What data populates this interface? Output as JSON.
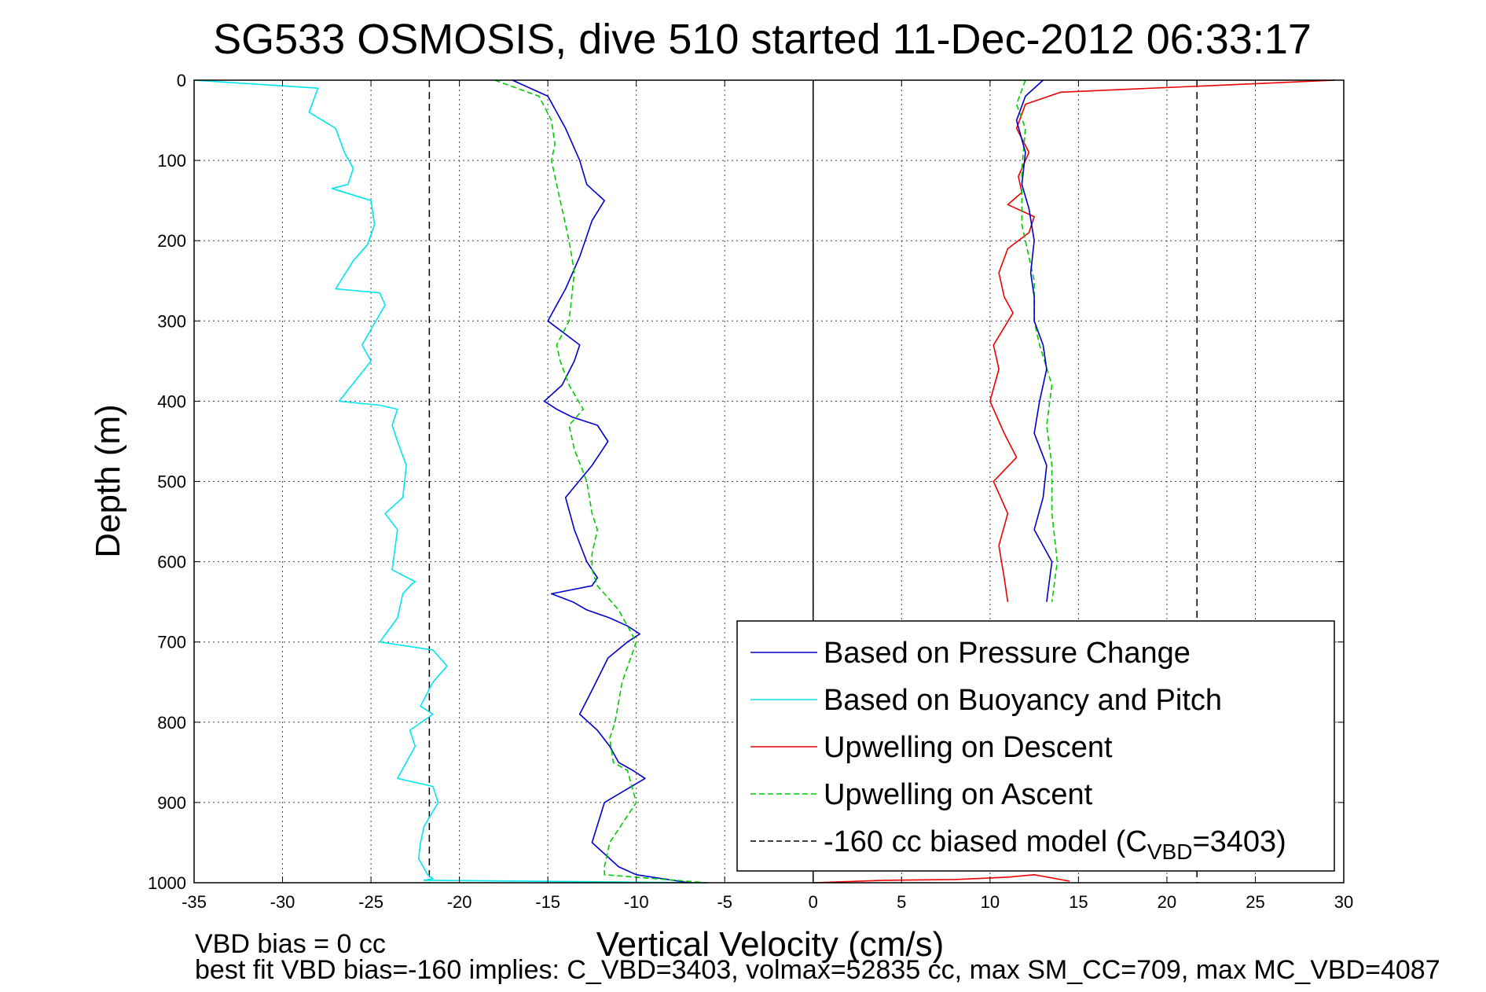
{
  "chart_data": {
    "type": "line",
    "title": "SG533 OSMOSIS, dive 510 started 11-Dec-2012 06:33:17",
    "xlabel": "Vertical Velocity (cm/s)",
    "ylabel": "Depth (m)",
    "xlim": [
      -35,
      30
    ],
    "ylim": [
      0,
      1000
    ],
    "y_reversed": true,
    "grid": true,
    "x_ticks": [
      "-35",
      "-30",
      "-25",
      "-20",
      "-15",
      "-10",
      "-5",
      "0",
      "5",
      "10",
      "15",
      "20",
      "25",
      "30"
    ],
    "y_ticks": [
      "0",
      "100",
      "200",
      "300",
      "400",
      "500",
      "600",
      "700",
      "800",
      "900",
      "1000"
    ],
    "legend_position": "lower-right",
    "legend": [
      {
        "label": "Based on Pressure Change",
        "color": "#0000cc",
        "style": "solid"
      },
      {
        "label": "Based on Buoyancy and Pitch",
        "color": "#00e5ee",
        "style": "solid"
      },
      {
        "label": "Upwelling on Descent",
        "color": "#ee0000",
        "style": "solid"
      },
      {
        "label": "Upwelling on Ascent",
        "color": "#00cc00",
        "style": "dashed"
      },
      {
        "label_prefix": "-160 cc biased model (C",
        "label_sub": "VBD",
        "label_suffix": "=3403)",
        "color": "#000000",
        "style": "dashed"
      }
    ],
    "reference_lines": [
      {
        "x": -21.7,
        "color": "#000000",
        "style": "dashed"
      },
      {
        "x": 21.7,
        "color": "#000000",
        "style": "dashed"
      },
      {
        "x": 0,
        "color": "#000000",
        "style": "solid"
      }
    ],
    "series": [
      {
        "key": "buoyancy",
        "color": "#00e5ee",
        "style": "solid",
        "x": [
          -35,
          -28,
          -28.5,
          -27,
          -26.5,
          -26,
          -26.3,
          -27.2,
          -25,
          -24.8,
          -25.2,
          -26,
          -27,
          -24.5,
          -24.2,
          -25.5,
          -25,
          -26.8,
          -24.5,
          -23.5,
          -23.8,
          -23.5,
          -23,
          -23.2,
          -24.2,
          -23.5,
          -23.8,
          -22.5,
          -22.7,
          -23.2,
          -23.5,
          -24.5,
          -21.5,
          -20.7,
          -21.5,
          -22.2,
          -21.5,
          -22.8,
          -22.5,
          -23.5,
          -21.5,
          -21.2,
          -22,
          -22.2,
          -22.3,
          -21.8,
          -21.5,
          -22,
          -6
        ],
        "y": [
          0,
          10,
          40,
          60,
          90,
          110,
          130,
          135,
          150,
          180,
          205,
          225,
          260,
          265,
          280,
          330,
          350,
          400,
          405,
          410,
          430,
          450,
          480,
          520,
          540,
          560,
          610,
          625,
          628,
          640,
          670,
          700,
          710,
          730,
          750,
          780,
          790,
          810,
          830,
          870,
          880,
          900,
          930,
          950,
          970,
          990,
          995,
          997,
          1000
        ]
      },
      {
        "key": "pressure",
        "color": "#0000cc",
        "style": "solid",
        "x": [
          -17,
          -15,
          -14,
          -13.2,
          -12.8,
          -11.8,
          -12.5,
          -13.2,
          -14,
          -14.5,
          -15,
          -13.2,
          -13.5,
          -14.2,
          -15.2,
          -14.5,
          -13.6,
          -12.2,
          -11.6,
          -12.5,
          -14,
          -13.5,
          -12.8,
          -12.2,
          -12.5,
          -14.8,
          -13.6,
          -12.8,
          -11.5,
          -10.5,
          -9.8,
          -10.5,
          -11.6,
          -12.5,
          -13.2,
          -12.2,
          -11.5,
          -11,
          -10.2,
          -9.5,
          -11.8,
          -12.5,
          -11,
          -10,
          -7
        ],
        "y": [
          0,
          20,
          60,
          100,
          130,
          150,
          175,
          220,
          260,
          280,
          300,
          330,
          350,
          380,
          400,
          410,
          420,
          430,
          450,
          480,
          520,
          560,
          600,
          620,
          630,
          640,
          650,
          660,
          670,
          680,
          690,
          700,
          720,
          760,
          790,
          810,
          830,
          850,
          860,
          870,
          900,
          950,
          980,
          990,
          1000
        ]
      },
      {
        "key": "ascent",
        "color": "#00cc00",
        "style": "dashed",
        "x": [
          -18,
          -15.5,
          -14.8,
          -14.6,
          -14.8,
          -14.3,
          -13.8,
          -13.5,
          -13.8,
          -14.5,
          -14.3,
          -13.8,
          -13,
          -13.8,
          -13.5,
          -12.8,
          -12.5,
          -12.2,
          -12.5,
          -12.5,
          -12.2,
          -11.8,
          -11,
          -10,
          -10.8,
          -11.2,
          -11.5,
          -11.3,
          -10.5,
          -10,
          -11.5,
          -11.8,
          -11.8,
          -6
        ],
        "y": [
          0,
          20,
          50,
          80,
          100,
          150,
          200,
          240,
          300,
          330,
          350,
          380,
          410,
          430,
          460,
          500,
          540,
          560,
          590,
          610,
          630,
          640,
          660,
          700,
          750,
          800,
          820,
          850,
          860,
          900,
          950,
          980,
          990,
          1000
        ]
      },
      {
        "key": "descent",
        "color": "#ee0000",
        "style": "solid",
        "x": [
          29.5,
          14,
          12,
          11.5,
          12.2,
          11.6,
          11.8,
          11,
          12.5,
          12.2,
          11,
          10.5,
          10.8,
          11.3,
          10.2,
          10.5,
          10,
          10.8,
          11.5,
          10.2,
          11,
          10.5,
          10.8,
          11
        ],
        "y": [
          0,
          15,
          30,
          60,
          90,
          120,
          140,
          155,
          170,
          190,
          210,
          240,
          270,
          290,
          330,
          360,
          400,
          440,
          470,
          500,
          540,
          580,
          620,
          650
        ]
      },
      {
        "key": "ascent_right",
        "color": "#00cc00",
        "style": "dashed",
        "x": [
          12,
          11.5,
          12,
          11.8,
          11.8,
          12.5,
          12.5,
          12.8,
          13.5,
          13.2,
          13.5,
          13.5,
          13.8,
          13.5
        ],
        "y": [
          0,
          30,
          60,
          110,
          180,
          250,
          300,
          330,
          380,
          430,
          480,
          540,
          600,
          650
        ]
      },
      {
        "key": "pressure_right",
        "color": "#0000cc",
        "style": "solid",
        "x": [
          13,
          12,
          11.5,
          12,
          11.8,
          12.2,
          12.5,
          12.3,
          12.5,
          12.5,
          13,
          13.2,
          12.8,
          12.5,
          13.2,
          13,
          12.5,
          13.5,
          13.2
        ],
        "y": [
          0,
          20,
          50,
          90,
          130,
          160,
          200,
          240,
          270,
          300,
          330,
          360,
          400,
          440,
          480,
          520,
          560,
          600,
          650
        ]
      },
      {
        "key": "bottom",
        "color": "#ee0000",
        "style": "solid",
        "x": [
          0,
          4,
          8,
          11,
          12.5,
          14.5
        ],
        "y": [
          1000,
          997,
          996,
          993,
          990,
          998
        ]
      }
    ]
  },
  "footnotes": {
    "line1": "VBD bias = 0 cc",
    "line2": "best fit VBD bias=-160 implies: C_VBD=3403, volmax=52835 cc, max SM_CC=709, max MC_VBD=4087"
  }
}
